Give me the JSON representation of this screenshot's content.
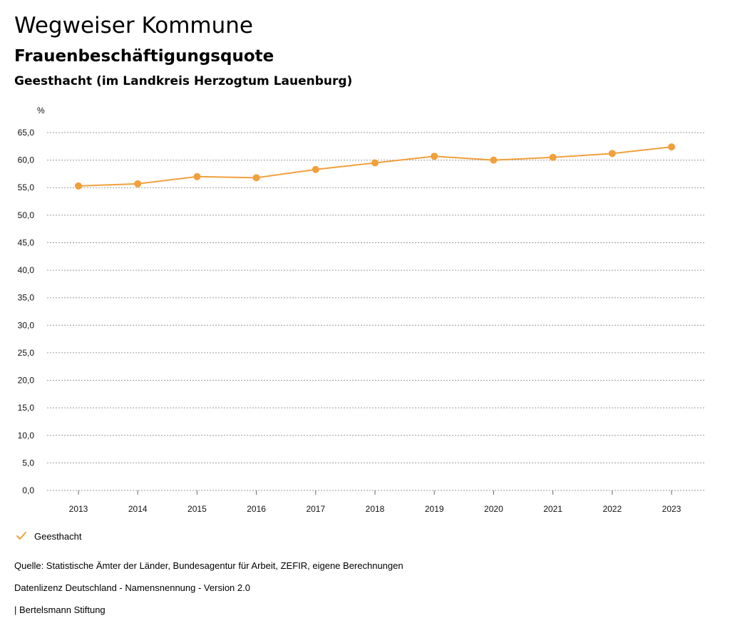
{
  "header": {
    "title": "Wegweiser Kommune",
    "subtitle": "Frauenbeschäftigungsquote",
    "region": "Geesthacht (im Landkreis Herzogtum Lauenburg)"
  },
  "chart_data": {
    "type": "line",
    "title": "Frauenbeschäftigungsquote",
    "ylabel": "%",
    "xlabel": "",
    "x": [
      "2013",
      "2014",
      "2015",
      "2016",
      "2017",
      "2018",
      "2019",
      "2020",
      "2021",
      "2022",
      "2023"
    ],
    "series": [
      {
        "name": "Geesthacht",
        "color": "#f0a03c",
        "values": [
          55.3,
          55.7,
          57.0,
          56.8,
          58.3,
          59.5,
          60.7,
          60.0,
          60.5,
          61.2,
          62.4
        ]
      }
    ],
    "ylim": [
      0,
      65
    ],
    "yticks": [
      "0,0",
      "5,0",
      "10,0",
      "15,0",
      "20,0",
      "25,0",
      "30,0",
      "35,0",
      "40,0",
      "45,0",
      "50,0",
      "55,0",
      "60,0",
      "65,0"
    ],
    "grid": true,
    "legend": "bottom-left"
  },
  "legend": {
    "label": "Geesthacht",
    "icon": "check-icon"
  },
  "footer": {
    "source": "Quelle: Statistische Ämter der Länder, Bundesagentur für Arbeit, ZEFIR, eigene Berechnungen",
    "license": "Datenlizenz Deutschland - Namensnennung - Version 2.0",
    "brand": "| Bertelsmann Stiftung"
  }
}
